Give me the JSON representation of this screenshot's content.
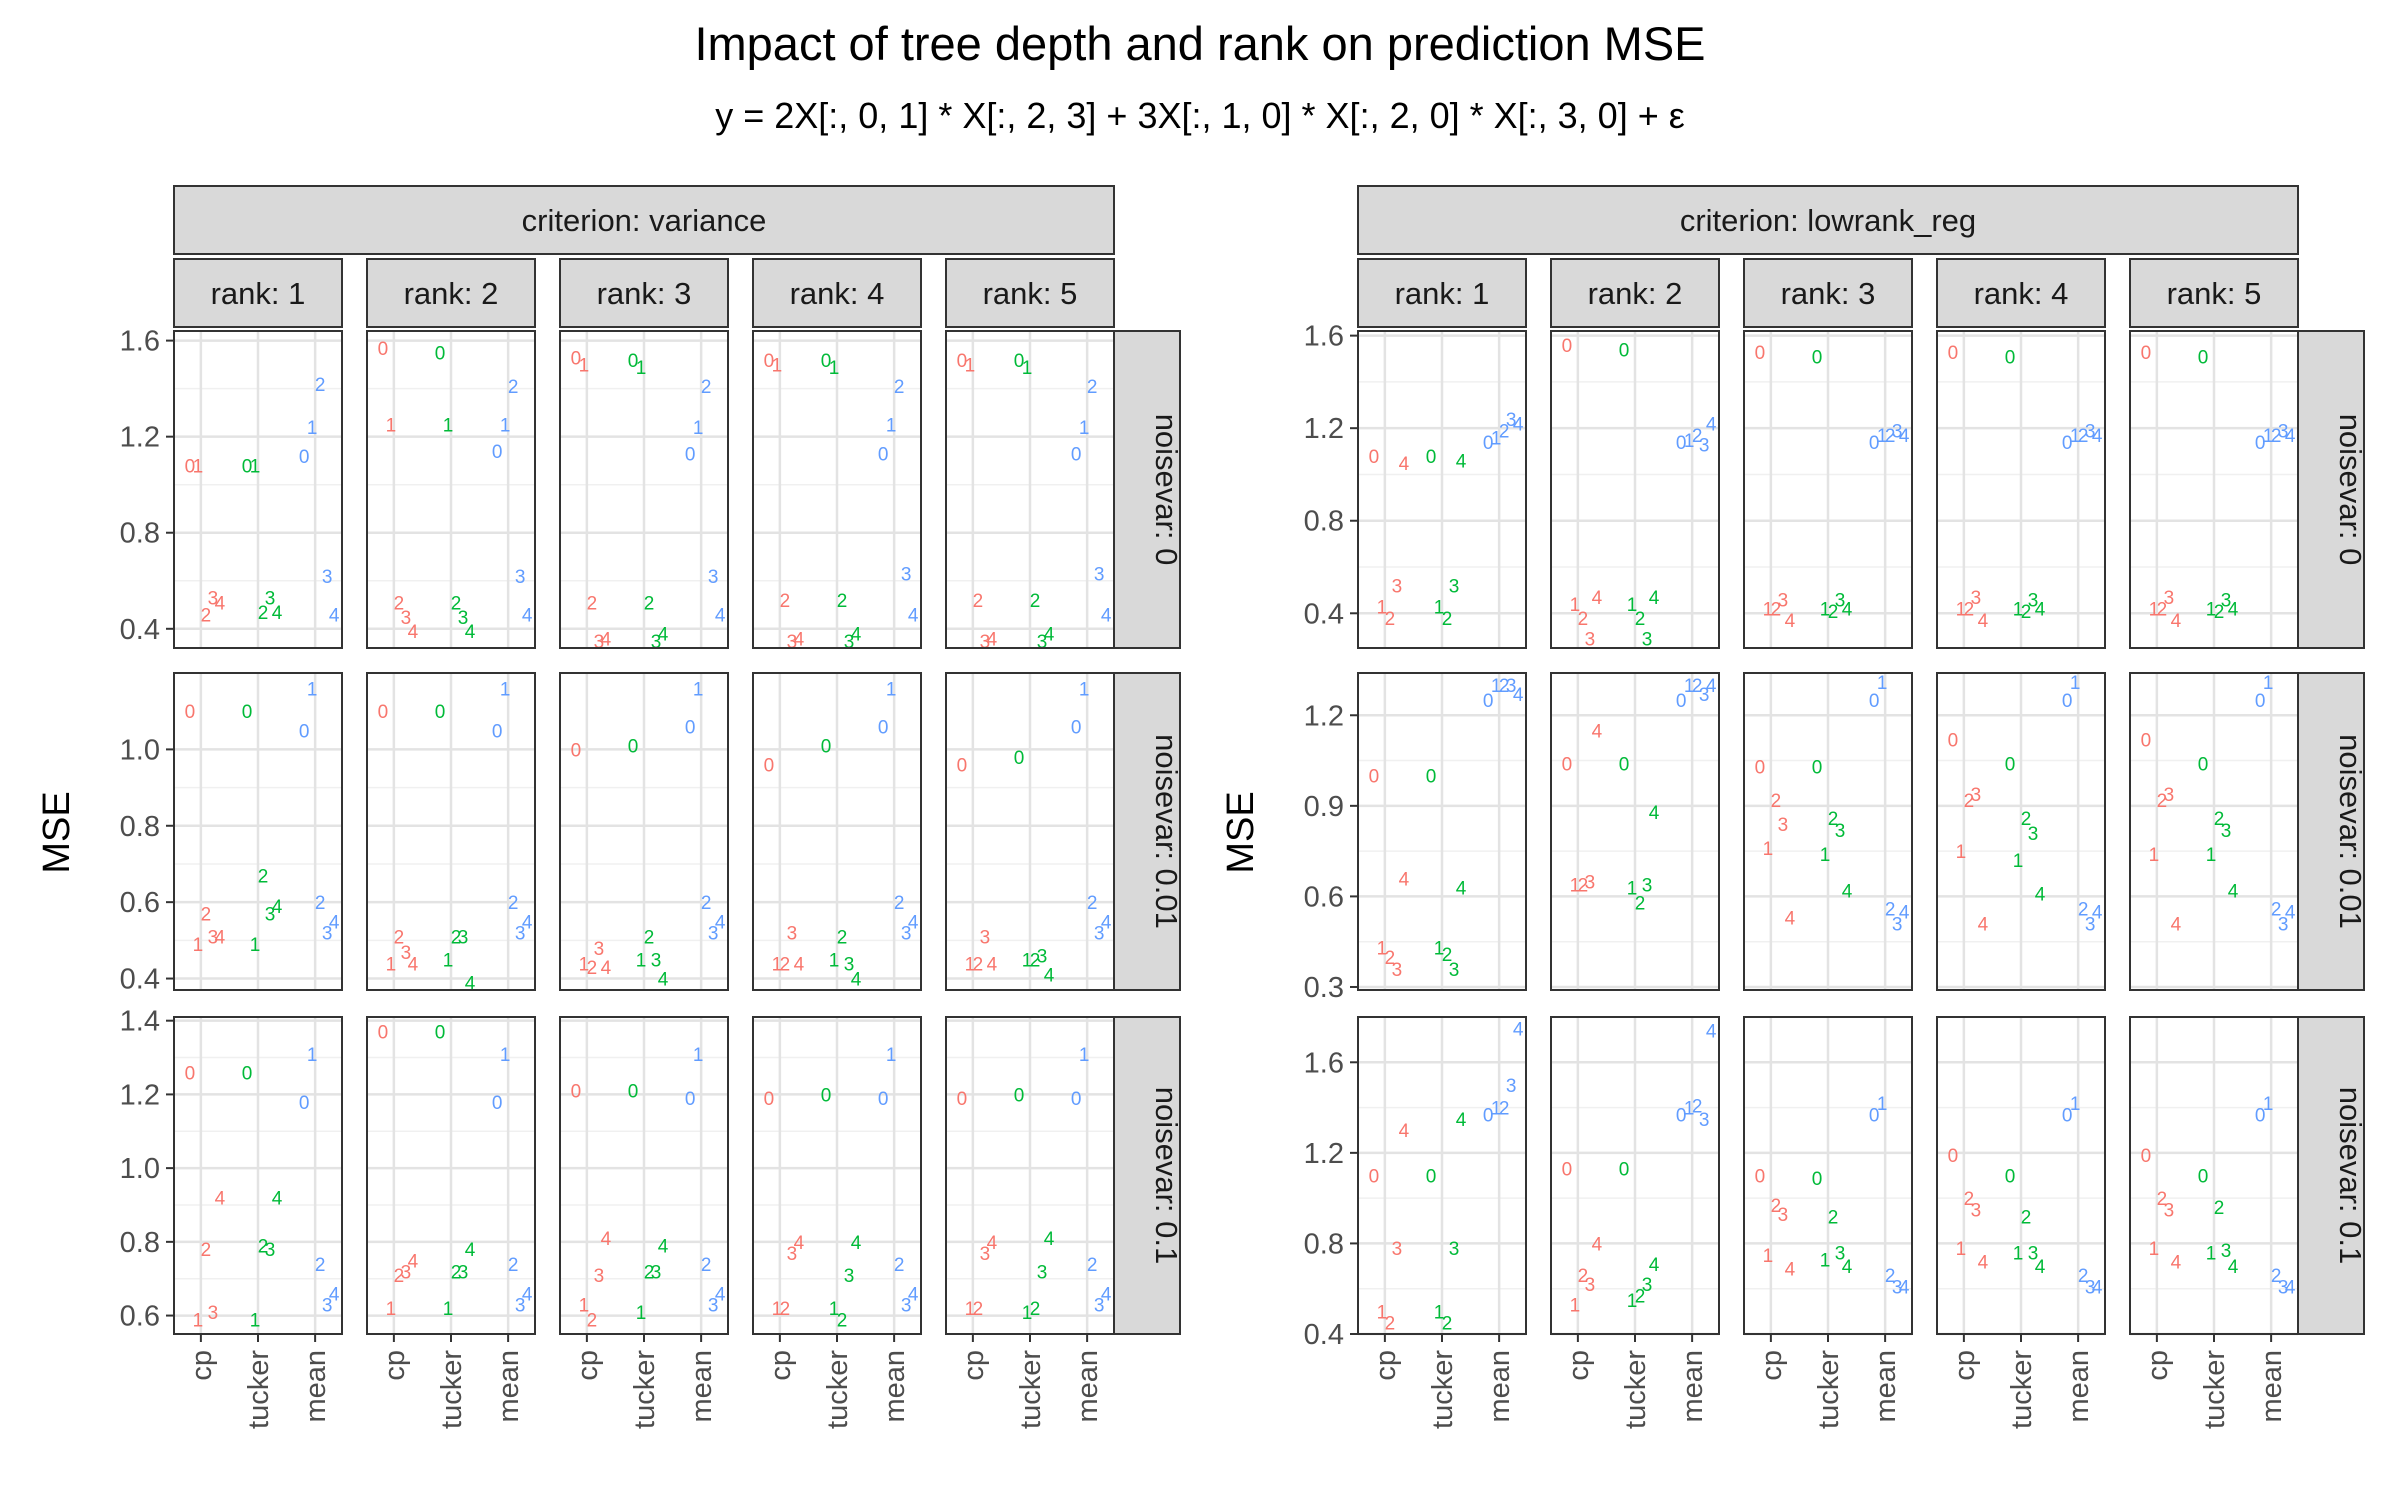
{
  "title": "Impact of tree depth and rank on prediction MSE",
  "subtitle": "y = 2X[:, 0, 1] * X[:, 2, 3] + 3X[:, 1, 0] * X[:, 2, 0] * X[:, 3, 0] + ε",
  "chart_data": {
    "type": "scatter",
    "title": "Impact of tree depth and rank on prediction MSE",
    "subtitle": "y = 2X[:, 0, 1] * X[:, 2, 3] + 3X[:, 1, 0] * X[:, 2, 0] * X[:, 3, 0] + ε",
    "ylabel": "MSE",
    "x_categories": [
      "cp",
      "tucker",
      "mean"
    ],
    "series_colors": {
      "cp": "#F8766D",
      "tucker": "#00BA38",
      "mean": "#619CFF"
    },
    "point_labels": "tree depth (0-4)",
    "strip_prefixes": {
      "criterion": "criterion: ",
      "rank": "rank: ",
      "noisevar": "noisevar: "
    },
    "rank_values": [
      "1",
      "2",
      "3",
      "4",
      "5"
    ],
    "noisevar_values": [
      "0",
      "0.01",
      "0.1"
    ],
    "grid": true,
    "blocks": [
      {
        "criterion": "variance",
        "rows": [
          {
            "noisevar": "0",
            "ylim": [
              0.32,
              1.64
            ],
            "yticks": [
              0.4,
              0.8,
              1.2,
              1.6
            ],
            "ytick_labels": [
              "0.4",
              "0.8",
              "1.2",
              "1.6"
            ],
            "ranks": [
              {
                "cp": [
                  1.08,
                  1.08,
                  0.46,
                  0.53,
                  0.51
                ],
                "tucker": [
                  1.08,
                  1.08,
                  0.47,
                  0.53,
                  0.47
                ],
                "mean": [
                  1.12,
                  1.24,
                  1.42,
                  0.62,
                  0.46
                ]
              },
              {
                "cp": [
                  1.57,
                  1.25,
                  0.51,
                  0.45,
                  0.39
                ],
                "tucker": [
                  1.55,
                  1.25,
                  0.51,
                  0.45,
                  0.39
                ],
                "mean": [
                  1.14,
                  1.25,
                  1.41,
                  0.62,
                  0.46
                ]
              },
              {
                "cp": [
                  1.53,
                  1.5,
                  0.51,
                  0.35,
                  0.36
                ],
                "tucker": [
                  1.52,
                  1.49,
                  0.51,
                  0.35,
                  0.38
                ],
                "mean": [
                  1.13,
                  1.24,
                  1.41,
                  0.62,
                  0.46
                ]
              },
              {
                "cp": [
                  1.52,
                  1.5,
                  0.52,
                  0.35,
                  0.36
                ],
                "tucker": [
                  1.52,
                  1.49,
                  0.52,
                  0.35,
                  0.38
                ],
                "mean": [
                  1.13,
                  1.25,
                  1.41,
                  0.63,
                  0.46
                ]
              },
              {
                "cp": [
                  1.52,
                  1.5,
                  0.52,
                  0.35,
                  0.36
                ],
                "tucker": [
                  1.52,
                  1.49,
                  0.52,
                  0.35,
                  0.38
                ],
                "mean": [
                  1.13,
                  1.24,
                  1.41,
                  0.63,
                  0.46
                ]
              }
            ]
          },
          {
            "noisevar": "0.01",
            "ylim": [
              0.37,
              1.2
            ],
            "yticks": [
              0.4,
              0.6,
              0.8,
              1.0
            ],
            "ytick_labels": [
              "0.4",
              "0.6",
              "0.8",
              "1.0"
            ],
            "ranks": [
              {
                "cp": [
                  1.1,
                  0.49,
                  0.57,
                  0.51,
                  0.51
                ],
                "tucker": [
                  1.1,
                  0.49,
                  0.67,
                  0.57,
                  0.59
                ],
                "mean": [
                  1.05,
                  1.16,
                  0.6,
                  0.52,
                  0.55
                ]
              },
              {
                "cp": [
                  1.1,
                  0.44,
                  0.51,
                  0.47,
                  0.44
                ],
                "tucker": [
                  1.1,
                  0.45,
                  0.51,
                  0.51,
                  0.39
                ],
                "mean": [
                  1.05,
                  1.16,
                  0.6,
                  0.52,
                  0.55
                ]
              },
              {
                "cp": [
                  1.0,
                  0.44,
                  0.43,
                  0.48,
                  0.43
                ],
                "tucker": [
                  1.01,
                  0.45,
                  0.51,
                  0.45,
                  0.4
                ],
                "mean": [
                  1.06,
                  1.16,
                  0.6,
                  0.52,
                  0.55
                ]
              },
              {
                "cp": [
                  0.96,
                  0.44,
                  0.44,
                  0.52,
                  0.44
                ],
                "tucker": [
                  1.01,
                  0.45,
                  0.51,
                  0.44,
                  0.4
                ],
                "mean": [
                  1.06,
                  1.16,
                  0.6,
                  0.52,
                  0.55
                ]
              },
              {
                "cp": [
                  0.96,
                  0.44,
                  0.44,
                  0.51,
                  0.44
                ],
                "tucker": [
                  0.98,
                  0.45,
                  0.45,
                  0.46,
                  0.41
                ],
                "mean": [
                  1.06,
                  1.16,
                  0.6,
                  0.52,
                  0.55
                ]
              }
            ]
          },
          {
            "noisevar": "0.1",
            "ylim": [
              0.55,
              1.41
            ],
            "yticks": [
              0.6,
              0.8,
              1.0,
              1.2,
              1.4
            ],
            "ytick_labels": [
              "0.6",
              "0.8",
              "1.0",
              "1.2",
              "1.4"
            ],
            "ranks": [
              {
                "cp": [
                  1.26,
                  0.59,
                  0.78,
                  0.61,
                  0.92
                ],
                "tucker": [
                  1.26,
                  0.59,
                  0.79,
                  0.78,
                  0.92
                ],
                "mean": [
                  1.18,
                  1.31,
                  0.74,
                  0.63,
                  0.66
                ]
              },
              {
                "cp": [
                  1.37,
                  0.62,
                  0.71,
                  0.72,
                  0.75
                ],
                "tucker": [
                  1.37,
                  0.62,
                  0.72,
                  0.72,
                  0.78
                ],
                "mean": [
                  1.18,
                  1.31,
                  0.74,
                  0.63,
                  0.66
                ]
              },
              {
                "cp": [
                  1.21,
                  0.63,
                  0.59,
                  0.71,
                  0.81
                ],
                "tucker": [
                  1.21,
                  0.61,
                  0.72,
                  0.72,
                  0.79
                ],
                "mean": [
                  1.19,
                  1.31,
                  0.74,
                  0.63,
                  0.66
                ]
              },
              {
                "cp": [
                  1.19,
                  0.62,
                  0.62,
                  0.77,
                  0.8
                ],
                "tucker": [
                  1.2,
                  0.62,
                  0.59,
                  0.71,
                  0.8
                ],
                "mean": [
                  1.19,
                  1.31,
                  0.74,
                  0.63,
                  0.66
                ]
              },
              {
                "cp": [
                  1.19,
                  0.62,
                  0.62,
                  0.77,
                  0.8
                ],
                "tucker": [
                  1.2,
                  0.61,
                  0.62,
                  0.72,
                  0.81
                ],
                "mean": [
                  1.19,
                  1.31,
                  0.74,
                  0.63,
                  0.66
                ]
              }
            ]
          }
        ]
      },
      {
        "criterion": "lowrank_reg",
        "rows": [
          {
            "noisevar": "0",
            "ylim": [
              0.25,
              1.62
            ],
            "yticks": [
              0.4,
              0.8,
              1.2,
              1.6
            ],
            "ytick_labels": [
              "0.4",
              "0.8",
              "1.2",
              "1.6"
            ],
            "ranks": [
              {
                "cp": [
                  1.08,
                  0.43,
                  0.38,
                  0.52,
                  1.05
                ],
                "tucker": [
                  1.08,
                  0.43,
                  0.38,
                  0.52,
                  1.06
                ],
                "mean": [
                  1.14,
                  1.16,
                  1.19,
                  1.24,
                  1.22
                ]
              },
              {
                "cp": [
                  1.56,
                  0.44,
                  0.38,
                  0.29,
                  0.47
                ],
                "tucker": [
                  1.54,
                  0.44,
                  0.38,
                  0.29,
                  0.47
                ],
                "mean": [
                  1.14,
                  1.15,
                  1.17,
                  1.13,
                  1.22
                ]
              },
              {
                "cp": [
                  1.53,
                  0.42,
                  0.42,
                  0.46,
                  0.37
                ],
                "tucker": [
                  1.51,
                  0.42,
                  0.41,
                  0.46,
                  0.42
                ],
                "mean": [
                  1.14,
                  1.17,
                  1.17,
                  1.19,
                  1.17
                ]
              },
              {
                "cp": [
                  1.53,
                  0.42,
                  0.42,
                  0.47,
                  0.37
                ],
                "tucker": [
                  1.51,
                  0.42,
                  0.41,
                  0.46,
                  0.42
                ],
                "mean": [
                  1.14,
                  1.17,
                  1.17,
                  1.19,
                  1.17
                ]
              },
              {
                "cp": [
                  1.53,
                  0.42,
                  0.42,
                  0.47,
                  0.37
                ],
                "tucker": [
                  1.51,
                  0.42,
                  0.41,
                  0.46,
                  0.42
                ],
                "mean": [
                  1.14,
                  1.17,
                  1.17,
                  1.19,
                  1.17
                ]
              }
            ]
          },
          {
            "noisevar": "0.01",
            "ylim": [
              0.29,
              1.34
            ],
            "yticks": [
              0.3,
              0.6,
              0.9,
              1.2
            ],
            "ytick_labels": [
              "0.3",
              "0.6",
              "0.9",
              "1.2"
            ],
            "ranks": [
              {
                "cp": [
                  1.0,
                  0.43,
                  0.4,
                  0.36,
                  0.66
                ],
                "tucker": [
                  1.0,
                  0.43,
                  0.41,
                  0.36,
                  0.63
                ],
                "mean": [
                  1.25,
                  1.3,
                  1.3,
                  1.3,
                  1.27
                ]
              },
              {
                "cp": [
                  1.04,
                  0.64,
                  0.64,
                  0.65,
                  1.15
                ],
                "tucker": [
                  1.04,
                  0.63,
                  0.58,
                  0.64,
                  0.88
                ],
                "mean": [
                  1.25,
                  1.3,
                  1.3,
                  1.27,
                  1.3
                ]
              },
              {
                "cp": [
                  1.03,
                  0.76,
                  0.92,
                  0.84,
                  0.53
                ],
                "tucker": [
                  1.03,
                  0.74,
                  0.86,
                  0.82,
                  0.62
                ],
                "mean": [
                  1.25,
                  1.31,
                  0.56,
                  0.51,
                  0.55
                ]
              },
              {
                "cp": [
                  1.12,
                  0.75,
                  0.92,
                  0.94,
                  0.51
                ],
                "tucker": [
                  1.04,
                  0.72,
                  0.86,
                  0.81,
                  0.61
                ],
                "mean": [
                  1.25,
                  1.31,
                  0.56,
                  0.51,
                  0.55
                ]
              },
              {
                "cp": [
                  1.12,
                  0.74,
                  0.92,
                  0.94,
                  0.51
                ],
                "tucker": [
                  1.04,
                  0.74,
                  0.86,
                  0.82,
                  0.62
                ],
                "mean": [
                  1.25,
                  1.31,
                  0.56,
                  0.51,
                  0.55
                ]
              }
            ]
          },
          {
            "noisevar": "0.1",
            "ylim": [
              0.4,
              1.8
            ],
            "yticks": [
              0.4,
              0.8,
              1.2,
              1.6
            ],
            "ytick_labels": [
              "0.4",
              "0.8",
              "1.2",
              "1.6"
            ],
            "ranks": [
              {
                "cp": [
                  1.1,
                  0.5,
                  0.45,
                  0.78,
                  1.3
                ],
                "tucker": [
                  1.1,
                  0.5,
                  0.45,
                  0.78,
                  1.35
                ],
                "mean": [
                  1.37,
                  1.4,
                  1.4,
                  1.5,
                  1.75
                ]
              },
              {
                "cp": [
                  1.13,
                  0.53,
                  0.66,
                  0.62,
                  0.8
                ],
                "tucker": [
                  1.13,
                  0.55,
                  0.57,
                  0.62,
                  0.71
                ],
                "mean": [
                  1.37,
                  1.4,
                  1.41,
                  1.35,
                  1.74
                ]
              },
              {
                "cp": [
                  1.1,
                  0.75,
                  0.97,
                  0.93,
                  0.69
                ],
                "tucker": [
                  1.09,
                  0.73,
                  0.92,
                  0.76,
                  0.7
                ],
                "mean": [
                  1.37,
                  1.42,
                  0.66,
                  0.61,
                  0.61
                ]
              },
              {
                "cp": [
                  1.19,
                  0.78,
                  1.0,
                  0.95,
                  0.72
                ],
                "tucker": [
                  1.1,
                  0.76,
                  0.92,
                  0.76,
                  0.7
                ],
                "mean": [
                  1.37,
                  1.42,
                  0.66,
                  0.61,
                  0.61
                ]
              },
              {
                "cp": [
                  1.19,
                  0.78,
                  1.0,
                  0.95,
                  0.72
                ],
                "tucker": [
                  1.1,
                  0.76,
                  0.96,
                  0.77,
                  0.7
                ],
                "mean": [
                  1.37,
                  1.42,
                  0.66,
                  0.61,
                  0.61
                ]
              }
            ]
          }
        ]
      }
    ]
  }
}
